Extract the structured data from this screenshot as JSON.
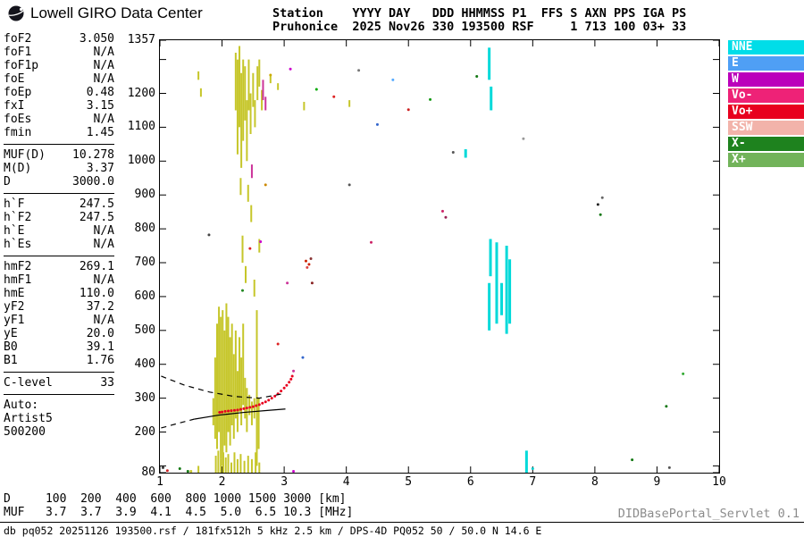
{
  "header": {
    "brand": "Lowell GIRO Data Center",
    "line1": "Station    YYYY DAY   DDD HHMMSS P1  FFS S AXN PPS IGA PS",
    "line2": "Pruhonice  2025 Nov26 330 193500 RSF     1 713 100 03+ 33"
  },
  "params": {
    "groups": [
      {
        "rows": [
          [
            "foF2",
            "3.050"
          ],
          [
            "foF1",
            "N/A"
          ],
          [
            "foF1p",
            "N/A"
          ],
          [
            "foE",
            "N/A"
          ],
          [
            "foEp",
            "0.48"
          ],
          [
            "fxI",
            "3.15"
          ],
          [
            "foEs",
            "N/A"
          ],
          [
            "fmin",
            "1.45"
          ]
        ]
      },
      {
        "rows": [
          [
            "MUF(D)",
            "10.278"
          ],
          [
            "M(D)",
            "3.37"
          ],
          [
            "D",
            "3000.0"
          ]
        ]
      },
      {
        "rows": [
          [
            "h`F",
            "247.5"
          ],
          [
            "h`F2",
            "247.5"
          ],
          [
            "h`E",
            "N/A"
          ],
          [
            "h`Es",
            "N/A"
          ]
        ]
      },
      {
        "rows": [
          [
            "hmF2",
            "269.1"
          ],
          [
            "hmF1",
            "N/A"
          ],
          [
            "hmE",
            "110.0"
          ],
          [
            "yF2",
            "37.2"
          ],
          [
            "yF1",
            "N/A"
          ],
          [
            "yE",
            "20.0"
          ],
          [
            "B0",
            "39.1"
          ],
          [
            "B1",
            "1.76"
          ]
        ]
      },
      {
        "rows": [
          [
            "C-level",
            "33"
          ]
        ]
      }
    ],
    "auto_label": "Auto:",
    "auto_lines": [
      "Artist5",
      "500200"
    ]
  },
  "legend": [
    {
      "label": "NNE",
      "color": "#00dde8"
    },
    {
      "label": "E",
      "color": "#4f9ff5"
    },
    {
      "label": "W",
      "color": "#bb00bb"
    },
    {
      "label": "Vo-",
      "color": "#ee2277"
    },
    {
      "label": "Vo+",
      "color": "#e8001e"
    },
    {
      "label": "SSW",
      "color": "#f2b3aa"
    },
    {
      "label": "X-",
      "color": "#1e821e"
    },
    {
      "label": "X+",
      "color": "#72b35a"
    }
  ],
  "bottom": {
    "d_row": "D     100  200  400  600  800 1000 1500 3000 [km]",
    "muf_row": "MUF   3.7  3.7  3.9  4.1  4.5  5.0  6.5 10.3 [MHz]",
    "status": "db pq052 20251126 193500.rsf / 181fx512h 5 kHz 2.5 km / DPS-4D PQ052 50 / 50.0 N 14.6 E",
    "servlet": "DIDBasePortal_Servlet 0.1"
  },
  "chart_data": {
    "type": "scatter",
    "title": "Pruhonice ionogram 2025 Nov26 330 193500 RSF",
    "xlabel": "[MHz]",
    "ylabel": "[km]",
    "xlim": [
      1,
      10
    ],
    "ylim": [
      80,
      1357
    ],
    "x_ticks": [
      {
        "v": 1,
        "label": "1"
      },
      {
        "v": 2,
        "label": "2"
      },
      {
        "v": 3,
        "label": "3"
      },
      {
        "v": 4,
        "label": "4"
      },
      {
        "v": 5,
        "label": "5"
      },
      {
        "v": 6,
        "label": "6"
      },
      {
        "v": 7,
        "label": "7"
      },
      {
        "v": 8,
        "label": "8"
      },
      {
        "v": 9,
        "label": "9"
      },
      {
        "v": 10,
        "label": "10"
      }
    ],
    "y_ticks": [
      {
        "v": 1357,
        "label": "1357"
      },
      {
        "v": 1300,
        "label": ""
      },
      {
        "v": 1200,
        "label": "1200"
      },
      {
        "v": 1100,
        "label": "1100"
      },
      {
        "v": 1000,
        "label": "1000"
      },
      {
        "v": 900,
        "label": "900"
      },
      {
        "v": 800,
        "label": "800"
      },
      {
        "v": 700,
        "label": "700"
      },
      {
        "v": 600,
        "label": "600"
      },
      {
        "v": 500,
        "label": "500"
      },
      {
        "v": 400,
        "label": "400"
      },
      {
        "v": 300,
        "label": "300"
      },
      {
        "v": 200,
        "label": "200"
      },
      {
        "v": 100,
        "label": ""
      },
      {
        "v": 80,
        "label": "80"
      }
    ],
    "series": [
      {
        "name": "spread-f-echoes",
        "kind": "vseg",
        "color": "#c6c62a",
        "w": 2,
        "segs": [
          [
            2.22,
            1150,
            1320
          ],
          [
            2.25,
            1020,
            1300
          ],
          [
            2.28,
            1100,
            1340
          ],
          [
            2.31,
            980,
            1260
          ],
          [
            2.34,
            1060,
            1300
          ],
          [
            2.37,
            1120,
            1280
          ],
          [
            2.4,
            1000,
            1180
          ],
          [
            2.43,
            1150,
            1300
          ],
          [
            2.46,
            1080,
            1200
          ],
          [
            2.5,
            1160,
            1260
          ],
          [
            2.53,
            1100,
            1180
          ],
          [
            2.57,
            1180,
            1280
          ],
          [
            2.6,
            1220,
            1300
          ],
          [
            2.64,
            1150,
            1210
          ],
          [
            2.3,
            900,
            950
          ],
          [
            2.42,
            880,
            930
          ],
          [
            2.33,
            700,
            780
          ],
          [
            2.38,
            640,
            690
          ],
          [
            2.47,
            820,
            870
          ],
          [
            2.52,
            600,
            650
          ],
          [
            2.6,
            730,
            770
          ],
          [
            1.86,
            220,
            300
          ],
          [
            1.89,
            180,
            420
          ],
          [
            1.92,
            150,
            520
          ],
          [
            1.95,
            200,
            570
          ],
          [
            1.98,
            120,
            540
          ],
          [
            2.01,
            100,
            560
          ],
          [
            2.04,
            160,
            500
          ],
          [
            2.07,
            140,
            580
          ],
          [
            2.1,
            200,
            540
          ],
          [
            2.13,
            160,
            480
          ],
          [
            2.16,
            220,
            520
          ],
          [
            2.19,
            180,
            430
          ],
          [
            2.22,
            240,
            500
          ],
          [
            2.25,
            200,
            380
          ],
          [
            2.28,
            260,
            480
          ],
          [
            2.31,
            220,
            420
          ],
          [
            2.34,
            280,
            520
          ],
          [
            2.37,
            240,
            360
          ],
          [
            2.4,
            200,
            330
          ],
          [
            2.44,
            250,
            310
          ],
          [
            2.48,
            220,
            290
          ],
          [
            2.52,
            240,
            300
          ],
          [
            2.56,
            100,
            560
          ],
          [
            2.59,
            150,
            300
          ],
          [
            1.9,
            80,
            130
          ],
          [
            1.94,
            80,
            145
          ],
          [
            1.98,
            80,
            120
          ],
          [
            2.02,
            80,
            140
          ],
          [
            2.06,
            80,
            125
          ],
          [
            2.1,
            80,
            135
          ],
          [
            2.15,
            80,
            110
          ],
          [
            2.2,
            80,
            140
          ],
          [
            2.25,
            80,
            120
          ],
          [
            2.3,
            80,
            135
          ],
          [
            2.36,
            80,
            115
          ],
          [
            2.42,
            80,
            130
          ],
          [
            2.48,
            80,
            120
          ],
          [
            2.54,
            80,
            140
          ],
          [
            2.6,
            80,
            110
          ],
          [
            1.62,
            1240,
            1265
          ],
          [
            1.66,
            1190,
            1215
          ],
          [
            3.32,
            1150,
            1175
          ],
          [
            2.9,
            1210,
            1230
          ],
          [
            4.05,
            1160,
            1180
          ],
          [
            2.78,
            1230,
            1255
          ],
          [
            1.62,
            80,
            100
          ]
        ]
      },
      {
        "name": "pink-oblique-echoes",
        "kind": "vseg",
        "color": "#cc3399",
        "w": 2,
        "segs": [
          [
            2.66,
            1180,
            1240
          ],
          [
            2.7,
            1150,
            1190
          ],
          [
            2.48,
            950,
            990
          ]
        ]
      },
      {
        "name": "nne-oblique-echoes",
        "kind": "vseg",
        "color": "#00d9d9",
        "w": 3,
        "segs": [
          [
            6.3,
            1240,
            1335
          ],
          [
            6.33,
            1150,
            1220
          ],
          [
            6.3,
            500,
            640
          ],
          [
            6.32,
            660,
            770
          ],
          [
            6.42,
            520,
            760
          ],
          [
            6.5,
            545,
            640
          ],
          [
            6.58,
            490,
            750
          ],
          [
            6.63,
            520,
            710
          ],
          [
            6.9,
            80,
            145
          ],
          [
            5.92,
            1010,
            1035
          ]
        ]
      },
      {
        "name": "o-mode-f-trace",
        "kind": "dots",
        "color": "#e8001e",
        "r": 1.5,
        "pts": [
          [
            1.96,
            258
          ],
          [
            2.0,
            259
          ],
          [
            2.05,
            261
          ],
          [
            2.1,
            262
          ],
          [
            2.15,
            263
          ],
          [
            2.2,
            264
          ],
          [
            2.25,
            265
          ],
          [
            2.3,
            267
          ],
          [
            2.35,
            269
          ],
          [
            2.4,
            271
          ],
          [
            2.45,
            273
          ],
          [
            2.5,
            275
          ],
          [
            2.55,
            278
          ],
          [
            2.6,
            281
          ],
          [
            2.65,
            285
          ],
          [
            2.7,
            289
          ],
          [
            2.75,
            294
          ],
          [
            2.8,
            300
          ],
          [
            2.85,
            306
          ],
          [
            2.9,
            313
          ],
          [
            2.95,
            321
          ],
          [
            3.0,
            330
          ],
          [
            3.04,
            338
          ],
          [
            3.08,
            347
          ],
          [
            3.11,
            356
          ],
          [
            3.13,
            365
          ]
        ]
      },
      {
        "name": "misc-echo-dots",
        "kind": "mdots",
        "r": 1.5,
        "pts": [
          [
            1.79,
            782,
            "#444444"
          ],
          [
            1.05,
            95,
            "#333333"
          ],
          [
            1.12,
            86,
            "#cc2222"
          ],
          [
            1.32,
            92,
            "#117711"
          ],
          [
            1.5,
            84,
            "#c6c62a"
          ],
          [
            1.45,
            84,
            "#117711"
          ],
          [
            3.35,
            705,
            "#cc2200"
          ],
          [
            3.4,
            695,
            "#cc2200"
          ],
          [
            3.43,
            712,
            "#883333"
          ],
          [
            3.37,
            686,
            "#dd4444"
          ],
          [
            3.05,
            640,
            "#cc3399"
          ],
          [
            2.62,
            762,
            "#cc00cc"
          ],
          [
            2.45,
            742,
            "#dd2222"
          ],
          [
            2.33,
            618,
            "#228822"
          ],
          [
            2.7,
            930,
            "#cc8800"
          ],
          [
            3.1,
            1272,
            "#cc00cc"
          ],
          [
            3.52,
            1212,
            "#00aa00"
          ],
          [
            4.2,
            1268,
            "#777777"
          ],
          [
            5.0,
            1152,
            "#cc2222"
          ],
          [
            2.78,
            1254,
            "#ccaa00"
          ],
          [
            4.5,
            1108,
            "#3366cc"
          ],
          [
            5.35,
            1182,
            "#119911"
          ],
          [
            4.05,
            930,
            "#555555"
          ],
          [
            4.4,
            760,
            "#cc2266"
          ],
          [
            5.55,
            852,
            "#cc2266"
          ],
          [
            5.6,
            834,
            "#992255"
          ],
          [
            5.72,
            1026,
            "#555555"
          ],
          [
            6.85,
            1066,
            "#999999"
          ],
          [
            8.05,
            872,
            "#222222"
          ],
          [
            8.09,
            842,
            "#117711"
          ],
          [
            8.12,
            892,
            "#666666"
          ],
          [
            9.15,
            276,
            "#117711"
          ],
          [
            9.42,
            372,
            "#33aa33"
          ],
          [
            9.2,
            95,
            "#555555"
          ],
          [
            8.6,
            118,
            "#117711"
          ],
          [
            7.0,
            92,
            "#00cccc"
          ],
          [
            4.75,
            1240,
            "#55aaff"
          ],
          [
            3.8,
            1190,
            "#dd2222"
          ],
          [
            6.1,
            1250,
            "#117711"
          ],
          [
            2.9,
            460,
            "#dd2222"
          ],
          [
            3.3,
            420,
            "#3366cc"
          ],
          [
            3.15,
            380,
            "#cc3399"
          ],
          [
            3.45,
            640,
            "#882222"
          ],
          [
            3.15,
            84,
            "#cc00cc"
          ]
        ]
      },
      {
        "name": "model-trace-upper-dashed",
        "kind": "line",
        "color": "#000000",
        "dash": "6,5",
        "pts": [
          [
            1.02,
            365
          ],
          [
            1.4,
            338
          ],
          [
            1.8,
            318
          ],
          [
            2.2,
            305
          ],
          [
            2.6,
            300
          ],
          [
            2.95,
            312
          ]
        ]
      },
      {
        "name": "model-trace-lower-dashed",
        "kind": "line",
        "color": "#000000",
        "dash": "6,5",
        "pts": [
          [
            1.02,
            212
          ],
          [
            1.3,
            226
          ],
          [
            1.55,
            238
          ]
        ]
      },
      {
        "name": "model-trace-solid",
        "kind": "line",
        "color": "#000000",
        "pts": [
          [
            1.55,
            238
          ],
          [
            1.95,
            250
          ],
          [
            2.35,
            258
          ],
          [
            2.75,
            264
          ],
          [
            3.02,
            268
          ]
        ]
      }
    ]
  }
}
